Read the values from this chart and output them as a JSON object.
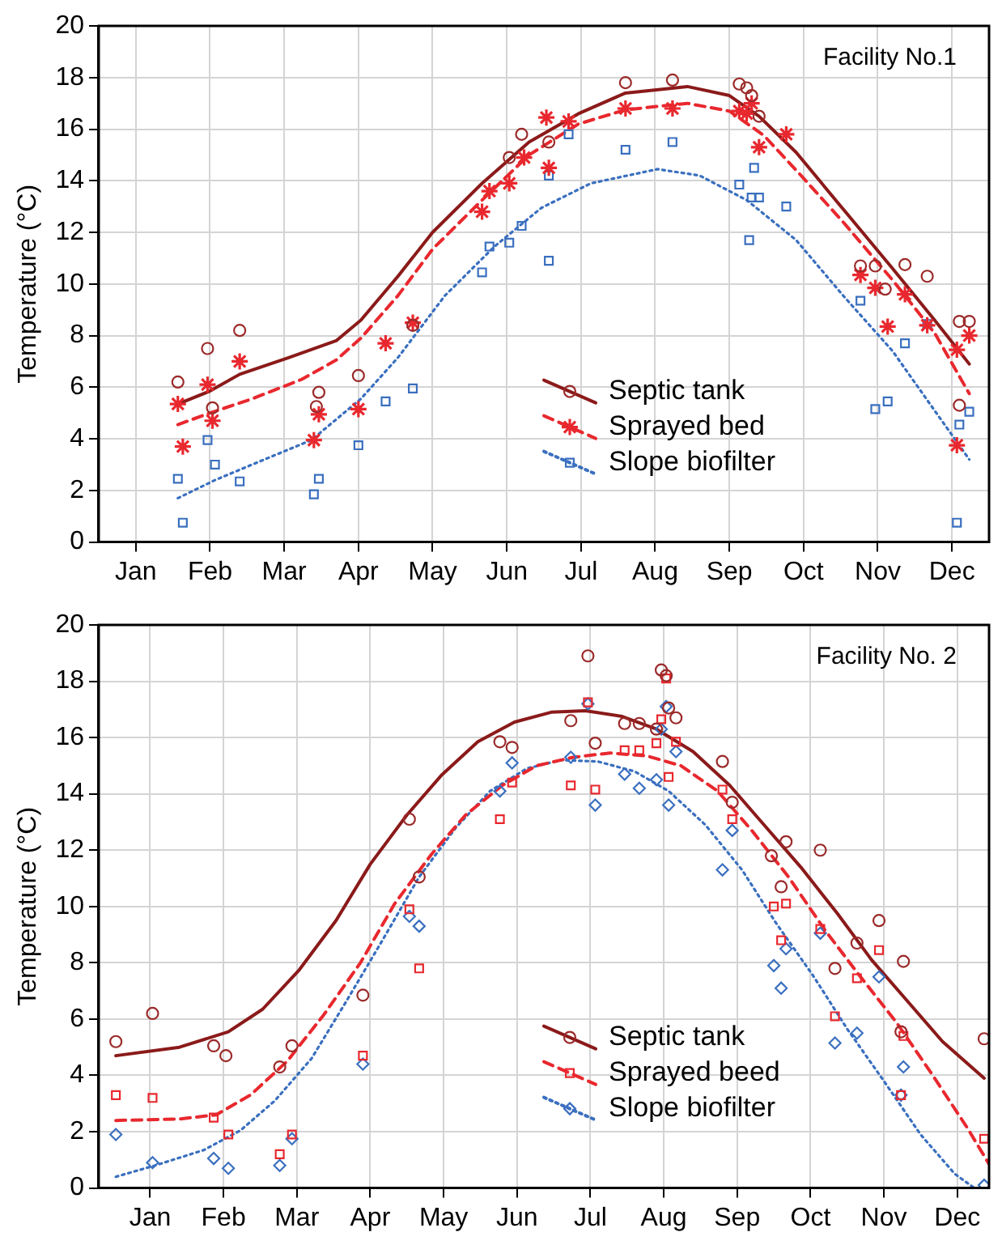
{
  "chart_data": [
    {
      "type": "scatter",
      "ylabel": "Temperature (°C)",
      "xlim": [
        "--01-01",
        "--12-27"
      ],
      "ylim": [
        0,
        20
      ],
      "xticks": [
        {
          "value": "--01-16",
          "label": "Jan"
        },
        {
          "value": "--02-15",
          "label": "Feb"
        },
        {
          "value": "--03-17",
          "label": "Mar"
        },
        {
          "value": "--04-16",
          "label": "Apr"
        },
        {
          "value": "--05-16",
          "label": "May"
        },
        {
          "value": "--06-15",
          "label": "Jun"
        },
        {
          "value": "--07-15",
          "label": "Jul"
        },
        {
          "value": "--08-14",
          "label": "Aug"
        },
        {
          "value": "--09-13",
          "label": "Sep"
        },
        {
          "value": "--10-13",
          "label": "Oct"
        },
        {
          "value": "--11-12",
          "label": "Nov"
        },
        {
          "value": "--12-12",
          "label": "Dec"
        }
      ],
      "yticks": [
        0,
        2,
        4,
        6,
        8,
        10,
        12,
        14,
        16,
        18,
        20
      ],
      "grid": true,
      "legend": "bottom right",
      "annotations": [
        "Facility No.1"
      ],
      "series": [
        {
          "name": "Septic tank",
          "type": "scatter",
          "marker": "circle",
          "color": "#9b2a2a",
          "x": [
            "--02-02",
            "--02-14",
            "--02-16",
            "--02-27",
            "--03-30",
            "--03-31",
            "--04-16",
            "--05-08",
            "--06-16",
            "--06-21",
            "--07-02",
            "--08-02",
            "--08-21",
            "--09-17",
            "--09-20",
            "--09-22",
            "--09-25",
            "--11-05",
            "--11-11",
            "--11-15",
            "--11-23",
            "--12-02",
            "--12-15",
            "--12-15",
            "--12-19"
          ],
          "values": [
            6.2,
            7.5,
            5.2,
            8.2,
            5.25,
            5.8,
            6.45,
            8.4,
            14.9,
            15.8,
            15.5,
            17.8,
            17.9,
            17.75,
            17.6,
            17.3,
            16.5,
            10.7,
            10.7,
            9.8,
            10.75,
            10.3,
            5.3,
            8.55,
            8.55
          ]
        },
        {
          "type": "line",
          "line_style": "solid",
          "color": "#8b1a1a",
          "x": [
            "--02-02",
            "--02-15",
            "--02-27",
            "--03-19",
            "--04-07",
            "--04-17",
            "--05-02",
            "--05-16",
            "--06-05",
            "--06-24",
            "--07-14",
            "--08-02",
            "--08-27",
            "--09-13",
            "--09-25",
            "--10-10",
            "--10-29",
            "--11-18",
            "--12-05",
            "--12-19"
          ],
          "values": [
            5.35,
            5.85,
            6.5,
            7.15,
            7.8,
            8.6,
            10.3,
            12.0,
            13.9,
            15.5,
            16.6,
            17.4,
            17.65,
            17.3,
            16.5,
            15.1,
            12.9,
            10.6,
            8.6,
            6.9
          ]
        },
        {
          "name": "Sprayed bed",
          "type": "scatter",
          "marker": "cross",
          "color": "#e8282e",
          "x": [
            "--02-02",
            "--02-04",
            "--02-14",
            "--02-16",
            "--02-27",
            "--03-29",
            "--03-31",
            "--04-16",
            "--04-27",
            "--05-08",
            "--06-05",
            "--06-08",
            "--06-16",
            "--06-22",
            "--07-01",
            "--07-02",
            "--07-10",
            "--08-02",
            "--08-21",
            "--09-17",
            "--09-20",
            "--09-22",
            "--09-25",
            "--10-06",
            "--11-05",
            "--11-11",
            "--11-16",
            "--11-23",
            "--12-02",
            "--12-14",
            "--12-14",
            "--12-19"
          ],
          "values": [
            5.35,
            3.7,
            6.1,
            4.7,
            7.0,
            3.95,
            4.95,
            5.15,
            7.7,
            8.5,
            12.8,
            13.6,
            13.9,
            14.9,
            16.45,
            14.5,
            16.3,
            16.8,
            16.8,
            16.7,
            16.6,
            17.0,
            15.3,
            15.8,
            10.35,
            9.85,
            8.35,
            9.6,
            8.4,
            7.45,
            3.75,
            8.0
          ]
        },
        {
          "type": "line",
          "line_style": "dashed",
          "color": "#e8282e",
          "x": [
            "--02-02",
            "--02-15",
            "--03-04",
            "--03-24",
            "--04-07",
            "--04-17",
            "--05-02",
            "--05-16",
            "--06-05",
            "--06-24",
            "--07-14",
            "--08-02",
            "--08-27",
            "--09-13",
            "--09-27",
            "--10-12",
            "--10-29",
            "--11-18",
            "--12-05",
            "--12-19"
          ],
          "values": [
            4.55,
            5.0,
            5.55,
            6.3,
            7.05,
            7.9,
            9.55,
            11.35,
            13.25,
            15.0,
            16.2,
            16.75,
            17.0,
            16.7,
            15.75,
            14.2,
            12.4,
            10.15,
            8.1,
            5.75
          ]
        },
        {
          "name": "Slope biofilter",
          "type": "scatter",
          "marker": "square",
          "color": "#3a6fbf",
          "x": [
            "--02-02",
            "--02-04",
            "--02-14",
            "--02-17",
            "--02-27",
            "--03-29",
            "--03-31",
            "--04-16",
            "--04-27",
            "--05-08",
            "--06-05",
            "--06-08",
            "--06-16",
            "--06-21",
            "--07-02",
            "--07-02",
            "--07-10",
            "--08-02",
            "--08-21",
            "--09-17",
            "--09-21",
            "--09-23",
            "--09-22",
            "--09-25",
            "--10-06",
            "--11-05",
            "--11-11",
            "--11-16",
            "--11-23",
            "--12-02",
            "--12-14",
            "--12-15",
            "--12-19"
          ],
          "values": [
            2.45,
            0.75,
            3.95,
            3.0,
            2.35,
            1.85,
            2.45,
            3.75,
            5.45,
            5.95,
            10.45,
            11.45,
            11.6,
            12.25,
            14.2,
            10.9,
            15.8,
            15.2,
            15.5,
            13.85,
            11.7,
            14.5,
            13.35,
            13.35,
            13.0,
            9.35,
            5.15,
            5.45,
            7.7,
            8.45,
            0.75,
            4.55,
            5.05
          ]
        },
        {
          "type": "line",
          "line_style": "dotted",
          "color": "#3a6fbf",
          "x": [
            "--02-02",
            "--02-17",
            "--03-09",
            "--03-28",
            "--04-17",
            "--05-02",
            "--05-21",
            "--06-10",
            "--06-29",
            "--07-19",
            "--08-15",
            "--09-01",
            "--09-20",
            "--10-10",
            "--10-29",
            "--11-18",
            "--12-02",
            "--12-19"
          ],
          "values": [
            1.7,
            2.4,
            3.2,
            3.95,
            5.55,
            7.15,
            9.55,
            11.45,
            12.95,
            13.9,
            14.45,
            14.2,
            13.25,
            11.7,
            9.55,
            7.4,
            5.5,
            3.2
          ]
        }
      ]
    },
    {
      "type": "scatter",
      "ylabel": "Temperature (°C)",
      "xlim": [
        "--01-01",
        "--12-31"
      ],
      "ylim": [
        0,
        20
      ],
      "xticks": [
        {
          "value": "--01-22",
          "label": "Jan"
        },
        {
          "value": "--02-21",
          "label": "Feb"
        },
        {
          "value": "--03-23",
          "label": "Mar"
        },
        {
          "value": "--04-22",
          "label": "Apr"
        },
        {
          "value": "--05-22",
          "label": "May"
        },
        {
          "value": "--06-21",
          "label": "Jun"
        },
        {
          "value": "--07-21",
          "label": "Jul"
        },
        {
          "value": "--08-20",
          "label": "Aug"
        },
        {
          "value": "--09-19",
          "label": "Sep"
        },
        {
          "value": "--10-19",
          "label": "Oct"
        },
        {
          "value": "--11-18",
          "label": "Nov"
        },
        {
          "value": "--12-18",
          "label": "Dec"
        }
      ],
      "yticks": [
        0,
        2,
        4,
        6,
        8,
        10,
        12,
        14,
        16,
        18,
        20
      ],
      "grid": true,
      "legend": "bottom right",
      "annotations": [
        "Facility No. 2"
      ],
      "series": [
        {
          "name": "Septic tank",
          "type": "scatter",
          "marker": "circle",
          "color": "#9b2a2a",
          "x": [
            "--01-08",
            "--01-23",
            "--02-17",
            "--02-22",
            "--03-16",
            "--03-21",
            "--04-19",
            "--05-08",
            "--05-12",
            "--06-14",
            "--06-19",
            "--07-13",
            "--07-20",
            "--07-23",
            "--08-04",
            "--08-10",
            "--08-17",
            "--08-19",
            "--08-21",
            "--08-22",
            "--08-25",
            "--09-13",
            "--09-17",
            "--10-03",
            "--10-07",
            "--10-09",
            "--10-23",
            "--10-29",
            "--11-07",
            "--11-16",
            "--11-25",
            "--11-26",
            "--12-29"
          ],
          "values": [
            5.2,
            6.2,
            5.05,
            4.7,
            4.3,
            5.05,
            6.85,
            13.1,
            11.05,
            15.85,
            15.65,
            16.6,
            18.9,
            15.8,
            16.5,
            16.5,
            16.3,
            18.4,
            18.2,
            17.05,
            16.7,
            15.15,
            13.7,
            11.8,
            10.7,
            12.3,
            12.0,
            7.8,
            8.7,
            9.5,
            5.55,
            8.05,
            5.3
          ]
        },
        {
          "type": "line",
          "line_style": "solid",
          "color": "#8b1a1a",
          "x": [
            "--01-08",
            "--02-03",
            "--02-23",
            "--03-09",
            "--03-24",
            "--04-08",
            "--04-22",
            "--05-07",
            "--05-21",
            "--06-05",
            "--06-20",
            "--07-05",
            "--07-19",
            "--08-03",
            "--08-17",
            "--09-01",
            "--09-16",
            "--09-30",
            "--10-15",
            "--10-30",
            "--11-13",
            "--11-28",
            "--12-12",
            "--12-29"
          ],
          "values": [
            4.7,
            5.0,
            5.55,
            6.35,
            7.75,
            9.5,
            11.5,
            13.25,
            14.65,
            15.85,
            16.55,
            16.9,
            16.95,
            16.75,
            16.3,
            15.5,
            14.3,
            12.9,
            11.4,
            9.75,
            8.1,
            6.6,
            5.2,
            3.9
          ]
        },
        {
          "name": "Sprayed beed",
          "type": "scatter",
          "marker": "square",
          "color": "#e8282e",
          "x": [
            "--01-08",
            "--01-23",
            "--02-17",
            "--02-23",
            "--03-16",
            "--03-21",
            "--04-19",
            "--05-08",
            "--05-12",
            "--06-14",
            "--06-19",
            "--07-13",
            "--07-20",
            "--07-23",
            "--08-04",
            "--08-10",
            "--08-17",
            "--08-19",
            "--08-21",
            "--08-22",
            "--08-25",
            "--09-13",
            "--09-17",
            "--10-04",
            "--10-07",
            "--10-09",
            "--10-23",
            "--10-29",
            "--11-07",
            "--11-16",
            "--11-25",
            "--11-26",
            "--12-29"
          ],
          "values": [
            3.3,
            3.2,
            2.5,
            1.9,
            1.2,
            1.9,
            4.7,
            9.9,
            7.8,
            13.1,
            14.4,
            14.3,
            17.25,
            14.15,
            15.55,
            15.55,
            15.8,
            16.65,
            18.1,
            14.6,
            15.85,
            14.15,
            13.1,
            10.0,
            8.8,
            10.1,
            9.2,
            6.1,
            7.45,
            8.45,
            3.3,
            5.4,
            1.75
          ]
        },
        {
          "type": "line",
          "line_style": "dashed",
          "color": "#e8282e",
          "x": [
            "--01-08",
            "--02-03",
            "--02-18",
            "--03-04",
            "--03-19",
            "--04-03",
            "--04-18",
            "--05-02",
            "--05-17",
            "--05-31",
            "--06-15",
            "--06-29",
            "--07-14",
            "--07-29",
            "--08-13",
            "--08-27",
            "--09-11",
            "--09-25",
            "--10-10",
            "--10-25",
            "--11-08",
            "--11-23",
            "--12-08",
            "--12-22",
            "--12-31"
          ],
          "values": [
            2.4,
            2.45,
            2.6,
            3.3,
            4.5,
            6.15,
            8.0,
            10.1,
            11.85,
            13.25,
            14.3,
            15.0,
            15.3,
            15.45,
            15.35,
            15.0,
            14.1,
            12.7,
            11.05,
            9.15,
            7.55,
            5.9,
            4.0,
            2.15,
            0.85
          ]
        },
        {
          "name": "Slope biofilter",
          "type": "scatter",
          "marker": "diamond",
          "color": "#3a6fbf",
          "x": [
            "--01-08",
            "--01-23",
            "--02-17",
            "--02-23",
            "--03-16",
            "--03-21",
            "--04-19",
            "--05-08",
            "--05-12",
            "--06-14",
            "--06-19",
            "--07-13",
            "--07-20",
            "--07-23",
            "--08-04",
            "--08-10",
            "--08-17",
            "--08-19",
            "--08-21",
            "--08-22",
            "--08-25",
            "--09-13",
            "--09-17",
            "--10-04",
            "--10-07",
            "--10-09",
            "--10-23",
            "--10-29",
            "--11-07",
            "--11-16",
            "--11-25",
            "--11-26",
            "--12-29"
          ],
          "values": [
            1.9,
            0.9,
            1.05,
            0.7,
            0.8,
            1.75,
            4.4,
            9.65,
            9.3,
            14.1,
            15.1,
            15.3,
            17.2,
            13.6,
            14.7,
            14.2,
            14.5,
            16.3,
            17.1,
            13.6,
            15.5,
            11.3,
            12.7,
            7.9,
            7.1,
            8.5,
            9.05,
            5.15,
            5.5,
            7.5,
            3.3,
            4.3,
            0.1
          ]
        },
        {
          "type": "line",
          "line_style": "dotted",
          "color": "#3a6fbf",
          "x": [
            "--01-08",
            "--01-24",
            "--02-13",
            "--02-28",
            "--03-14",
            "--03-29",
            "--04-12",
            "--04-27",
            "--05-12",
            "--05-27",
            "--06-10",
            "--06-25",
            "--07-09",
            "--07-24",
            "--08-08",
            "--08-22",
            "--09-06",
            "--09-21",
            "--10-05",
            "--10-20",
            "--11-03",
            "--11-18",
            "--12-03",
            "--12-17",
            "--12-25"
          ],
          "values": [
            0.4,
            0.8,
            1.35,
            2.05,
            3.1,
            4.6,
            6.6,
            8.8,
            11.05,
            12.8,
            14.1,
            14.9,
            15.2,
            15.15,
            14.8,
            14.1,
            12.9,
            11.3,
            9.4,
            7.55,
            5.65,
            3.8,
            1.9,
            0.5,
            0.0
          ]
        }
      ]
    }
  ]
}
